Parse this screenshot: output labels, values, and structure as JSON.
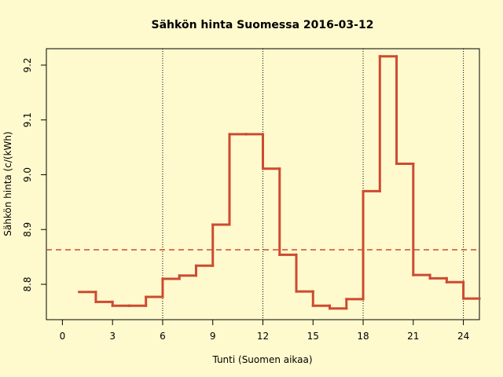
{
  "chart_data": {
    "type": "step",
    "title": "Sähkön hinta Suomessa 2016-03-12",
    "x_label": "Tunti (Suomen aikaa)",
    "y_label": "Sähkön hinta (c/(kWh)",
    "x": [
      1,
      2,
      3,
      4,
      5,
      6,
      7,
      8,
      9,
      10,
      11,
      12,
      13,
      14,
      15,
      16,
      17,
      18,
      19,
      20,
      21,
      22,
      23,
      24
    ],
    "series": [
      {
        "color": "#cd4a32",
        "values": [
          8.786,
          8.768,
          8.761,
          8.761,
          8.777,
          8.81,
          8.816,
          8.834,
          8.909,
          9.074,
          9.074,
          9.011,
          8.854,
          8.787,
          8.761,
          8.756,
          8.773,
          8.97,
          9.216,
          9.02,
          8.817,
          8.811,
          8.804,
          8.774
        ]
      }
    ],
    "mean": 8.863,
    "vlines": [
      6,
      12,
      18,
      24
    ],
    "xlim": [
      -0.96,
      24.96
    ],
    "ylim": [
      8.7355,
      9.23
    ],
    "xticks": [
      0,
      3,
      6,
      9,
      12,
      15,
      18,
      21,
      24
    ],
    "yticks": [
      8.8,
      8.9,
      {
        "value": 9,
        "label": "9.0"
      },
      9.1,
      9.2
    ]
  }
}
